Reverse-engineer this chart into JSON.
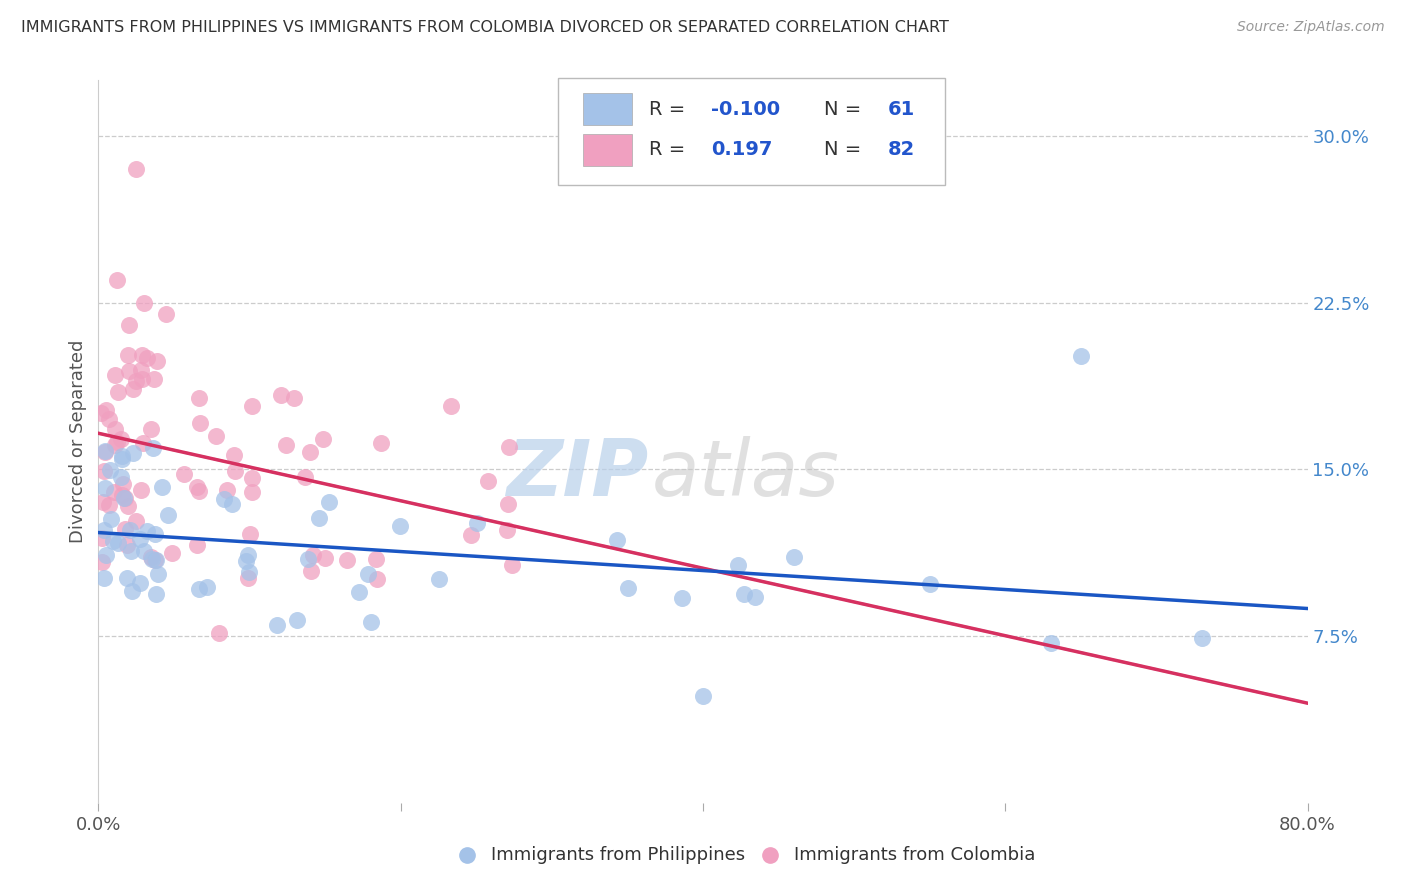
{
  "title": "IMMIGRANTS FROM PHILIPPINES VS IMMIGRANTS FROM COLOMBIA DIVORCED OR SEPARATED CORRELATION CHART",
  "source": "Source: ZipAtlas.com",
  "ylabel": "Divorced or Separated",
  "right_yticks": [
    "7.5%",
    "15.0%",
    "22.5%",
    "30.0%"
  ],
  "right_ytick_vals": [
    0.075,
    0.15,
    0.225,
    0.3
  ],
  "legend_label_blue": "Immigrants from Philippines",
  "legend_label_pink": "Immigrants from Colombia",
  "blue_color": "#a4c2e8",
  "pink_color": "#f0a0c0",
  "trendline_blue_color": "#1a56c4",
  "trendline_pink_color": "#d63060",
  "trendline_pink_dashed_color": "#d8b0cc",
  "background_color": "#ffffff",
  "xlim": [
    0.0,
    0.8
  ],
  "ylim": [
    0.0,
    0.325
  ],
  "R_blue": -0.1,
  "N_blue": 61,
  "R_pink": 0.197,
  "N_pink": 82,
  "text_dark": "#333333",
  "text_blue_val": "#2255cc",
  "text_right_axis": "#4488cc"
}
